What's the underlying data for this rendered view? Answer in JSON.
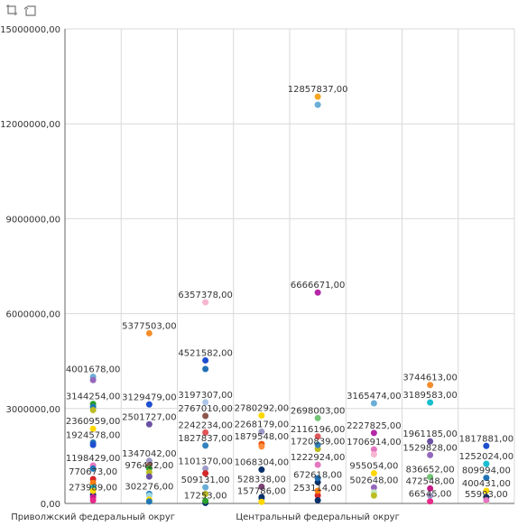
{
  "toolbar": {
    "icons": [
      "select-region-icon",
      "reset-zoom-icon"
    ]
  },
  "colors": {
    "gridline": "#d9d9d9",
    "axis": "#666666",
    "label": "#333333"
  },
  "chart_data": {
    "type": "scatter",
    "ylim": [
      0,
      15000000
    ],
    "yticks": [
      0,
      3000000,
      6000000,
      9000000,
      12000000,
      15000000
    ],
    "ytick_labels": [
      "0,00",
      "3000000,00",
      "6000000,00",
      "9000000,00",
      "12000000,00",
      "15000000,00"
    ],
    "categories": [
      "Приволжский федеральный округ",
      "",
      "",
      "",
      "Центральный федеральный округ",
      "",
      "",
      ""
    ],
    "grid": true,
    "legend": "none",
    "columns": [
      {
        "points": [
          {
            "y": 4001678,
            "color": "#6baed6",
            "label": "4001678,00"
          },
          {
            "y": 3900000,
            "color": "#9467bd"
          },
          {
            "y": 3144254,
            "color": "#2ca02c",
            "label": "3144254,00"
          },
          {
            "y": 3050000,
            "color": "#1f77b4"
          },
          {
            "y": 2950000,
            "color": "#bcbd22"
          },
          {
            "y": 2360959,
            "color": "#ffd700",
            "label": "2360959,00"
          },
          {
            "y": 1924578,
            "color": "#2171b5",
            "label": "1924578,00"
          },
          {
            "y": 1850000,
            "color": "#1f4fd1"
          },
          {
            "y": 1198429,
            "color": "#e377c2",
            "label": "1198429,00"
          },
          {
            "y": 1100000,
            "color": "#1f77b4"
          },
          {
            "y": 770673,
            "color": "#d62728",
            "label": "770673,00"
          },
          {
            "y": 650000,
            "color": "#ff7f0e"
          },
          {
            "y": 500000,
            "color": "#17becf"
          },
          {
            "y": 273989,
            "color": "#08306b",
            "label": "273989,00"
          },
          {
            "y": 400000,
            "color": "#ffd700"
          },
          {
            "y": 200000,
            "color": "#c51b8a"
          },
          {
            "y": 100000,
            "color": "#e7298a"
          }
        ]
      },
      {
        "points": [
          {
            "y": 5377503,
            "color": "#f28e2b",
            "label": "5377503,00"
          },
          {
            "y": 3129479,
            "color": "#1f4fd1",
            "label": "3129479,00"
          },
          {
            "y": 2501727,
            "color": "#6a51a3",
            "label": "2501727,00"
          },
          {
            "y": 1347042,
            "color": "#9e9ac8",
            "label": "1347042,00"
          },
          {
            "y": 1200000,
            "color": "#8c564b"
          },
          {
            "y": 1100000,
            "color": "#2ca02c"
          },
          {
            "y": 976422,
            "color": "#bcbd22",
            "label": "976422,00"
          },
          {
            "y": 850000,
            "color": "#6a51a3"
          },
          {
            "y": 302276,
            "color": "#3182bd",
            "label": "302276,00"
          },
          {
            "y": 250000,
            "color": "#9edae5"
          },
          {
            "y": 120000,
            "color": "#ffd700"
          },
          {
            "y": 60000,
            "color": "#1f77b4"
          }
        ]
      },
      {
        "points": [
          {
            "y": 6357378,
            "color": "#f7b6d2",
            "label": "6357378,00"
          },
          {
            "y": 4521582,
            "color": "#1f4fd1",
            "label": "4521582,00"
          },
          {
            "y": 4250000,
            "color": "#2171b5"
          },
          {
            "y": 3197307,
            "color": "#aec7e8",
            "label": "3197307,00"
          },
          {
            "y": 2767010,
            "color": "#8c564b",
            "label": "2767010,00"
          },
          {
            "y": 2242234,
            "color": "#e15759",
            "label": "2242234,00"
          },
          {
            "y": 1827837,
            "color": "#3182bd",
            "label": "1827837,00"
          },
          {
            "y": 1101370,
            "color": "#9e9ac8",
            "label": "1101370,00"
          },
          {
            "y": 950000,
            "color": "#d62728"
          },
          {
            "y": 509131,
            "color": "#6baed6",
            "label": "509131,00"
          },
          {
            "y": 300000,
            "color": "#bcbd22"
          },
          {
            "y": 17253,
            "color": "#08306b",
            "label": "17253,00"
          },
          {
            "y": 80000,
            "color": "#2ca02c"
          }
        ]
      },
      {
        "points": [
          {
            "y": 2780292,
            "color": "#ffd700",
            "label": "2780292,00"
          },
          {
            "y": 2268179,
            "color": "#9e9ac8",
            "label": "2268179,00"
          },
          {
            "y": 1879548,
            "color": "#e6550d",
            "label": "1879548,00"
          },
          {
            "y": 1800000,
            "color": "#fd8d3c"
          },
          {
            "y": 1068304,
            "color": "#08306b",
            "label": "1068304,00"
          },
          {
            "y": 528338,
            "color": "#7b4173",
            "label": "528338,00"
          },
          {
            "y": 157786,
            "color": "#3182bd",
            "label": "157786,00"
          },
          {
            "y": 200000,
            "color": "#08306b"
          },
          {
            "y": 50000,
            "color": "#ffd700"
          }
        ]
      },
      {
        "points": [
          {
            "y": 12857837,
            "color": "#f5a623",
            "label": "12857837,00"
          },
          {
            "y": 12600000,
            "color": "#6baed6"
          },
          {
            "y": 6666671,
            "color": "#b627a8",
            "label": "6666671,00"
          },
          {
            "y": 2698003,
            "color": "#74c476",
            "label": "2698003,00"
          },
          {
            "y": 2116196,
            "color": "#e15759",
            "label": "2116196,00"
          },
          {
            "y": 1720839,
            "color": "#bcbd22",
            "label": "1720839,00"
          },
          {
            "y": 1850000,
            "color": "#3182bd"
          },
          {
            "y": 1222924,
            "color": "#e377c2",
            "label": "1222924,00"
          },
          {
            "y": 672618,
            "color": "#08306b",
            "label": "672618,00"
          },
          {
            "y": 800000,
            "color": "#2171b5"
          },
          {
            "y": 253114,
            "color": "#d62728",
            "label": "253114,00"
          },
          {
            "y": 400000,
            "color": "#ff7f0e"
          },
          {
            "y": 100000,
            "color": "#08306b"
          }
        ]
      },
      {
        "points": [
          {
            "y": 3165474,
            "color": "#6baed6",
            "label": "3165474,00"
          },
          {
            "y": 2227825,
            "color": "#b627a8",
            "label": "2227825,00"
          },
          {
            "y": 1706914,
            "color": "#e377c2",
            "label": "1706914,00"
          },
          {
            "y": 1550000,
            "color": "#f7b6d2"
          },
          {
            "y": 955054,
            "color": "#ffd700",
            "label": "955054,00"
          },
          {
            "y": 502648,
            "color": "#9467bd",
            "label": "502648,00"
          },
          {
            "y": 350000,
            "color": "#c7e9c0"
          },
          {
            "y": 250000,
            "color": "#bcbd22"
          }
        ]
      },
      {
        "points": [
          {
            "y": 3744613,
            "color": "#f28e2b",
            "label": "3744613,00"
          },
          {
            "y": 3189583,
            "color": "#17becf",
            "label": "3189583,00"
          },
          {
            "y": 1961185,
            "color": "#6a51a3",
            "label": "1961185,00"
          },
          {
            "y": 1529828,
            "color": "#9467bd",
            "label": "1529828,00"
          },
          {
            "y": 836652,
            "color": "#74c476",
            "label": "836652,00"
          },
          {
            "y": 472548,
            "color": "#c51b8a",
            "label": "472548,00"
          },
          {
            "y": 66545,
            "color": "#e7298a",
            "label": "66545,00"
          },
          {
            "y": 250000,
            "color": "#9e9ac8"
          }
        ]
      },
      {
        "points": [
          {
            "y": 1817881,
            "color": "#1f4fd1",
            "label": "1817881,00"
          },
          {
            "y": 1252024,
            "color": "#17becf",
            "label": "1252024,00"
          },
          {
            "y": 809994,
            "color": "#2171b5",
            "label": "809994,00"
          },
          {
            "y": 400431,
            "color": "#ffd700",
            "label": "400431,00"
          },
          {
            "y": 55993,
            "color": "#c7e9c0",
            "label": "55993,00"
          },
          {
            "y": 200000,
            "color": "#08306b"
          },
          {
            "y": 100000,
            "color": "#e377c2"
          }
        ]
      }
    ]
  }
}
